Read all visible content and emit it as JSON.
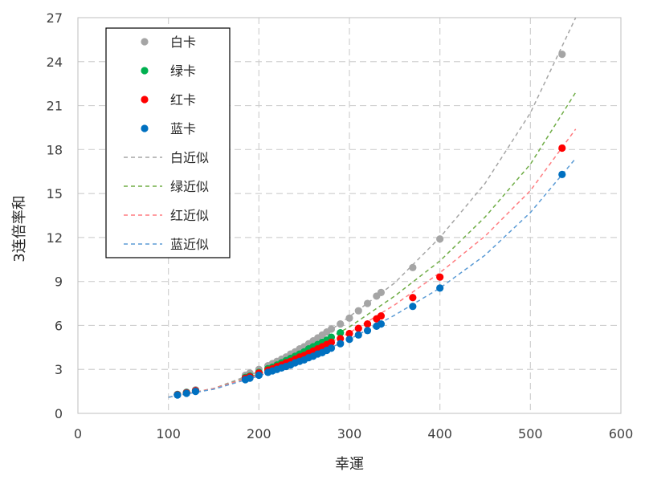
{
  "chart_data": {
    "type": "scatter",
    "title": "",
    "xlabel": "幸運",
    "ylabel": "3连倍率和",
    "xlim": [
      0,
      600
    ],
    "ylim": [
      0,
      27
    ],
    "xticks": [
      0,
      100,
      200,
      300,
      400,
      500,
      600
    ],
    "yticks": [
      0,
      3,
      6,
      9,
      12,
      15,
      18,
      21,
      24,
      27
    ],
    "grid": true,
    "legend_position": "top-left",
    "series": [
      {
        "name": "白卡",
        "kind": "points",
        "color": "#a5a5a5",
        "x": [
          110,
          120,
          130,
          185,
          190,
          200,
          210,
          215,
          220,
          225,
          230,
          235,
          240,
          245,
          250,
          255,
          260,
          265,
          270,
          275,
          280,
          290,
          300,
          310,
          320,
          330,
          335,
          370,
          400,
          535
        ],
        "y": [
          1.3,
          1.45,
          1.6,
          2.6,
          2.75,
          3.0,
          3.25,
          3.4,
          3.55,
          3.7,
          3.85,
          4.05,
          4.2,
          4.4,
          4.55,
          4.75,
          4.95,
          5.15,
          5.35,
          5.55,
          5.75,
          6.1,
          6.5,
          7.0,
          7.5,
          8.0,
          8.25,
          9.95,
          11.9,
          24.5
        ]
      },
      {
        "name": "绿卡",
        "kind": "points",
        "color": "#00b050",
        "x": [
          110,
          120,
          130,
          185,
          190,
          200,
          210,
          215,
          220,
          225,
          230,
          235,
          240,
          245,
          250,
          255,
          260,
          265,
          270,
          275,
          280,
          290
        ],
        "y": [
          1.28,
          1.42,
          1.55,
          2.45,
          2.55,
          2.8,
          3.05,
          3.15,
          3.3,
          3.45,
          3.6,
          3.75,
          3.9,
          4.05,
          4.2,
          4.4,
          4.55,
          4.7,
          4.85,
          5.0,
          5.2,
          5.5
        ]
      },
      {
        "name": "红卡",
        "kind": "points",
        "color": "#ff0000",
        "x": [
          110,
          120,
          130,
          185,
          190,
          200,
          210,
          215,
          220,
          225,
          230,
          235,
          240,
          245,
          250,
          255,
          260,
          265,
          270,
          275,
          280,
          290,
          300,
          310,
          320,
          330,
          335,
          370,
          400,
          535
        ],
        "y": [
          1.27,
          1.4,
          1.55,
          2.4,
          2.5,
          2.75,
          2.95,
          3.05,
          3.2,
          3.3,
          3.45,
          3.55,
          3.7,
          3.85,
          3.95,
          4.1,
          4.25,
          4.4,
          4.55,
          4.7,
          4.85,
          5.1,
          5.45,
          5.8,
          6.1,
          6.45,
          6.65,
          7.9,
          9.3,
          18.1
        ]
      },
      {
        "name": "蓝卡",
        "kind": "points",
        "color": "#0070c0",
        "x": [
          110,
          120,
          130,
          185,
          190,
          200,
          210,
          215,
          220,
          225,
          230,
          235,
          240,
          245,
          250,
          255,
          260,
          265,
          270,
          275,
          280,
          290,
          300,
          310,
          320,
          330,
          335,
          370,
          400,
          535
        ],
        "y": [
          1.25,
          1.37,
          1.5,
          2.3,
          2.4,
          2.6,
          2.8,
          2.9,
          3.0,
          3.1,
          3.2,
          3.3,
          3.45,
          3.55,
          3.65,
          3.8,
          3.9,
          4.05,
          4.15,
          4.3,
          4.45,
          4.75,
          5.05,
          5.35,
          5.65,
          5.95,
          6.1,
          7.3,
          8.55,
          16.3
        ]
      },
      {
        "name": "白近似",
        "kind": "fit",
        "color": "#a5a5a5",
        "x": [
          100,
          150,
          200,
          250,
          300,
          350,
          400,
          450,
          500,
          550
        ],
        "y": [
          1.1,
          1.7,
          2.85,
          4.4,
          6.6,
          8.9,
          12.0,
          15.7,
          20.5,
          27.0
        ]
      },
      {
        "name": "绿近似",
        "kind": "fit",
        "color": "#70ad47",
        "x": [
          100,
          150,
          200,
          250,
          300,
          350,
          400,
          450,
          500,
          550
        ],
        "y": [
          1.1,
          1.7,
          2.7,
          4.2,
          5.9,
          8.0,
          10.4,
          13.4,
          17.0,
          21.9
        ]
      },
      {
        "name": "红近似",
        "kind": "fit",
        "color": "#ff7c80",
        "x": [
          100,
          150,
          200,
          250,
          300,
          350,
          400,
          450,
          500,
          550
        ],
        "y": [
          1.1,
          1.7,
          2.65,
          3.95,
          5.5,
          7.4,
          9.6,
          12.1,
          15.2,
          19.4
        ]
      },
      {
        "name": "蓝近似",
        "kind": "fit",
        "color": "#5b9bd5",
        "x": [
          100,
          150,
          200,
          250,
          300,
          350,
          400,
          450,
          500,
          550
        ],
        "y": [
          1.1,
          1.65,
          2.55,
          3.7,
          5.05,
          6.7,
          8.55,
          10.8,
          13.7,
          17.4
        ]
      }
    ]
  }
}
